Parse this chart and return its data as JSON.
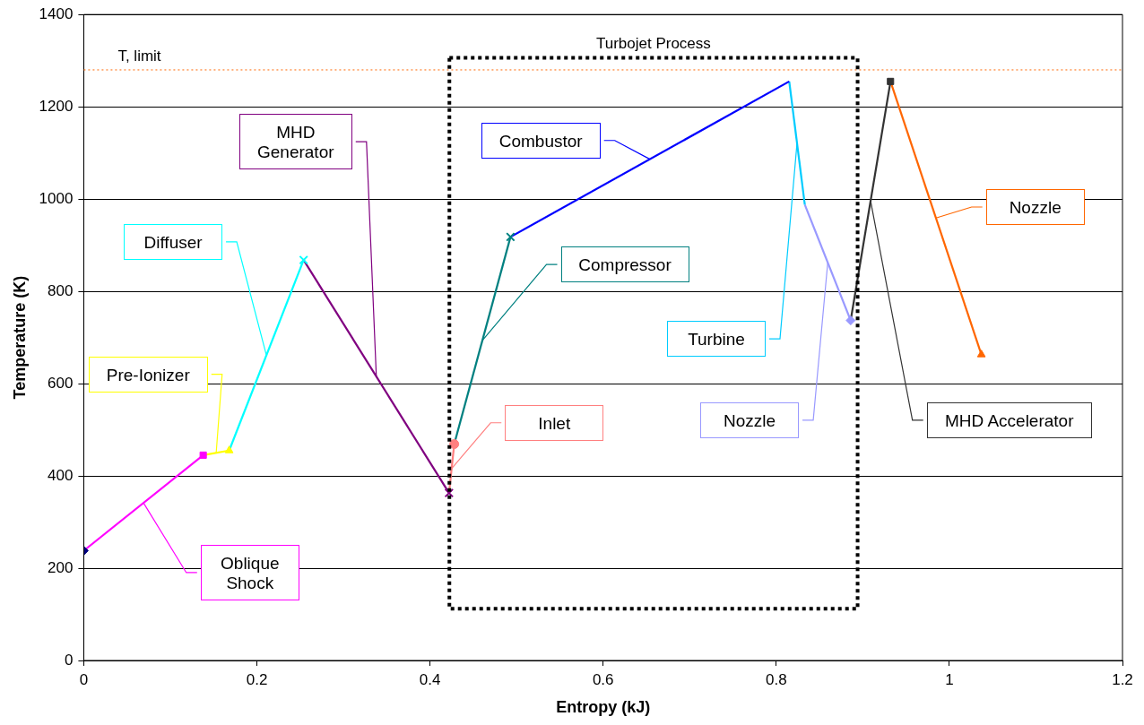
{
  "chart_data": {
    "type": "line",
    "xlabel": "Entropy (kJ)",
    "ylabel": "Temperature (K)",
    "xlim": [
      0,
      1.2
    ],
    "xticks": [
      0,
      0.2,
      0.4,
      0.6,
      0.8,
      1,
      1.2
    ],
    "ylim": [
      0,
      1400
    ],
    "yticks": [
      0,
      200,
      400,
      600,
      800,
      1000,
      1200,
      1400
    ],
    "grid": "y",
    "series": [
      {
        "color": "#000080",
        "marker": "diamond",
        "x": [
          0
        ],
        "values": [
          238
        ]
      },
      {
        "name": "Oblique Shock",
        "color": "#ff00ff",
        "marker": "square",
        "x": [
          0,
          0.138
        ],
        "values": [
          238,
          445
        ]
      },
      {
        "name": "Pre-Ionizer",
        "color": "#ffff00",
        "marker": "triangle",
        "x": [
          0.138,
          0.168
        ],
        "values": [
          445,
          455
        ]
      },
      {
        "name": "Diffuser",
        "color": "#00ffff",
        "marker": "cross",
        "x": [
          0.168,
          0.254
        ],
        "values": [
          455,
          868
        ]
      },
      {
        "name": "MHD Generator",
        "color": "#800080",
        "marker": "cross",
        "x": [
          0.254,
          0.422
        ],
        "values": [
          868,
          363
        ]
      },
      {
        "name": "Inlet",
        "color": "#ff8080",
        "marker": "circle",
        "x": [
          0.422,
          0.428
        ],
        "values": [
          363,
          469
        ]
      },
      {
        "name": "Compressor",
        "color": "#008080",
        "marker": "cross",
        "x": [
          0.428,
          0.493
        ],
        "values": [
          469,
          918
        ]
      },
      {
        "name": "Combustor",
        "color": "#0000ff",
        "marker": "none",
        "x": [
          0.493,
          0.815
        ],
        "values": [
          918,
          1255
        ]
      },
      {
        "name": "Turbine",
        "color": "#00ccff",
        "marker": "none",
        "x": [
          0.815,
          0.833
        ],
        "values": [
          1255,
          988
        ]
      },
      {
        "name": "Nozzle",
        "color": "#9999ff",
        "marker": "diamond",
        "x": [
          0.833,
          0.886
        ],
        "values": [
          988,
          737
        ]
      },
      {
        "name": "MHD Accelerator",
        "color": "#333333",
        "marker": "square",
        "x": [
          0.886,
          0.932
        ],
        "values": [
          737,
          1255
        ]
      },
      {
        "name": "Nozzle",
        "color": "#ff6600",
        "marker": "triangle",
        "x": [
          0.932,
          1.037
        ],
        "values": [
          1255,
          663
        ]
      }
    ],
    "ref_lines": [
      {
        "axis": "y",
        "value": 1280,
        "label": "T, limit",
        "color": "#ff6600",
        "line_style": "dotted"
      }
    ],
    "annotations": [
      "Turbojet Process"
    ]
  }
}
